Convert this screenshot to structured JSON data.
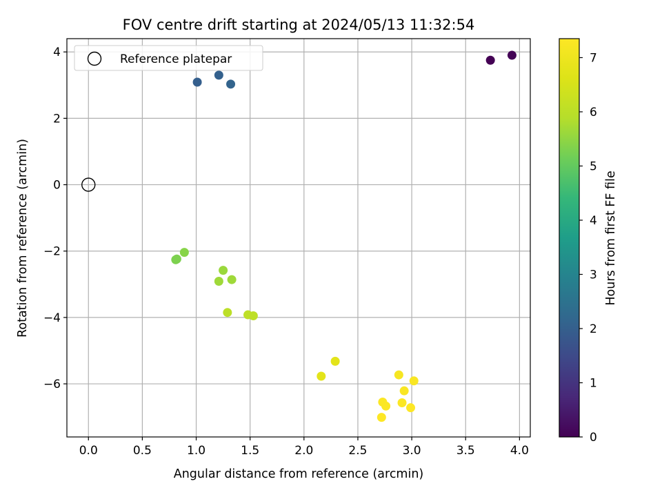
{
  "chart_data": {
    "type": "scatter",
    "title": "FOV centre drift starting at 2024/05/13 11:32:54",
    "xlabel": "Angular distance from reference (arcmin)",
    "ylabel": "Rotation from reference (arcmin)",
    "xlim": [
      -0.2,
      4.1
    ],
    "ylim": [
      -7.6,
      4.4
    ],
    "xticks": [
      0.0,
      0.5,
      1.0,
      1.5,
      2.0,
      2.5,
      3.0,
      3.5,
      4.0
    ],
    "xtick_labels": [
      "0.0",
      "0.5",
      "1.0",
      "1.5",
      "2.0",
      "2.5",
      "3.0",
      "3.5",
      "4.0"
    ],
    "yticks": [
      4,
      2,
      0,
      -2,
      -4,
      -6
    ],
    "ytick_labels": [
      "4",
      "2",
      "0",
      "−2",
      "−4",
      "−6"
    ],
    "grid": true,
    "legend": {
      "position": "top-left",
      "entries": [
        "Reference platepar"
      ]
    },
    "reference_point": {
      "x": 0.0,
      "y": 0.0,
      "label": "Reference platepar"
    },
    "colorbar": {
      "label": "Hours from first FF file",
      "range": [
        0,
        7.35
      ],
      "ticks": [
        0,
        1,
        2,
        3,
        4,
        5,
        6,
        7
      ],
      "tick_labels": [
        "0",
        "1",
        "2",
        "3",
        "4",
        "5",
        "6",
        "7"
      ],
      "colormap": "viridis"
    },
    "series": [
      {
        "name": "FOV centre drift",
        "points": [
          {
            "x": 3.73,
            "y": 3.75,
            "hours": 0.0
          },
          {
            "x": 3.93,
            "y": 3.9,
            "hours": 0.05
          },
          {
            "x": 1.01,
            "y": 3.09,
            "hours": 2.0
          },
          {
            "x": 1.21,
            "y": 3.3,
            "hours": 2.05
          },
          {
            "x": 1.32,
            "y": 3.03,
            "hours": 2.1
          },
          {
            "x": 0.81,
            "y": -2.26,
            "hours": 5.3
          },
          {
            "x": 0.82,
            "y": -2.24,
            "hours": 5.3
          },
          {
            "x": 0.89,
            "y": -2.04,
            "hours": 5.4
          },
          {
            "x": 1.25,
            "y": -2.58,
            "hours": 5.6
          },
          {
            "x": 1.21,
            "y": -2.91,
            "hours": 5.65
          },
          {
            "x": 1.33,
            "y": -2.86,
            "hours": 5.65
          },
          {
            "x": 1.29,
            "y": -3.85,
            "hours": 6.0
          },
          {
            "x": 1.48,
            "y": -3.92,
            "hours": 6.05
          },
          {
            "x": 1.53,
            "y": -3.95,
            "hours": 6.05
          },
          {
            "x": 2.16,
            "y": -5.77,
            "hours": 6.75
          },
          {
            "x": 2.29,
            "y": -5.32,
            "hours": 6.75
          },
          {
            "x": 2.88,
            "y": -5.73,
            "hours": 7.2
          },
          {
            "x": 3.02,
            "y": -5.91,
            "hours": 7.25
          },
          {
            "x": 2.93,
            "y": -6.21,
            "hours": 7.25
          },
          {
            "x": 2.73,
            "y": -6.55,
            "hours": 7.3
          },
          {
            "x": 2.76,
            "y": -6.67,
            "hours": 7.3
          },
          {
            "x": 2.91,
            "y": -6.57,
            "hours": 7.3
          },
          {
            "x": 2.99,
            "y": -6.72,
            "hours": 7.35
          },
          {
            "x": 2.72,
            "y": -7.01,
            "hours": 7.35
          }
        ]
      }
    ]
  }
}
